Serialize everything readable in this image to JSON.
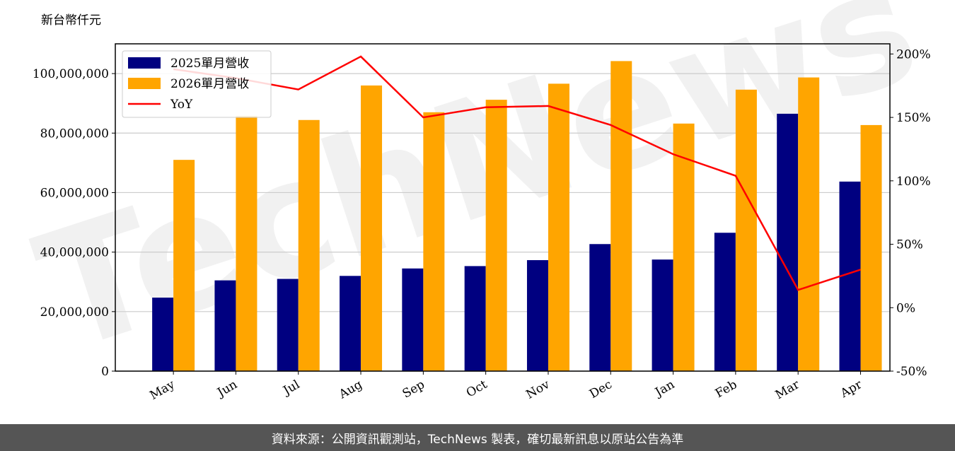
{
  "chart_data": {
    "type": "bar",
    "unit_label": "新台幣仟元",
    "categories": [
      "May",
      "Jun",
      "Jul",
      "Aug",
      "Sep",
      "Oct",
      "Nov",
      "Dec",
      "Jan",
      "Feb",
      "Mar",
      "Apr"
    ],
    "series": [
      {
        "name": "2025單月營收",
        "type": "bar",
        "axis": "left",
        "color": "#000080",
        "values": [
          24700000,
          30500000,
          31000000,
          32000000,
          34500000,
          35300000,
          37300000,
          42700000,
          37500000,
          46500000,
          86500000,
          63700000
        ]
      },
      {
        "name": "2026單月營收",
        "type": "bar",
        "axis": "left",
        "color": "#FFA500",
        "values": [
          71000000,
          85800000,
          84400000,
          96000000,
          87000000,
          91200000,
          96600000,
          104200000,
          83200000,
          94600000,
          98700000,
          82700000
        ]
      },
      {
        "name": "YoY",
        "type": "line",
        "axis": "right",
        "color": "#FF0000",
        "values": [
          188,
          181,
          172,
          198,
          150,
          158,
          159,
          144,
          121,
          104,
          14,
          30
        ]
      }
    ],
    "y_left": {
      "min": 0,
      "max": 110000000,
      "ticks": [
        0,
        20000000,
        40000000,
        60000000,
        80000000,
        100000000
      ],
      "tick_labels": [
        "0",
        "20,000,000",
        "40,000,000",
        "60,000,000",
        "80,000,000",
        "100,000,000"
      ]
    },
    "y_right": {
      "min": -50,
      "max": 208,
      "ticks": [
        -50,
        0,
        50,
        100,
        150,
        200
      ],
      "tick_labels": [
        "-50%",
        "0%",
        "50%",
        "100%",
        "150%",
        "200%"
      ]
    },
    "grid": "horizontal",
    "legend_position": "top-left"
  },
  "watermark": "TechNews",
  "footer": {
    "text": "資料來源：公開資訊觀測站，TechNews 製表，確切最新訊息以原站公告為準"
  }
}
